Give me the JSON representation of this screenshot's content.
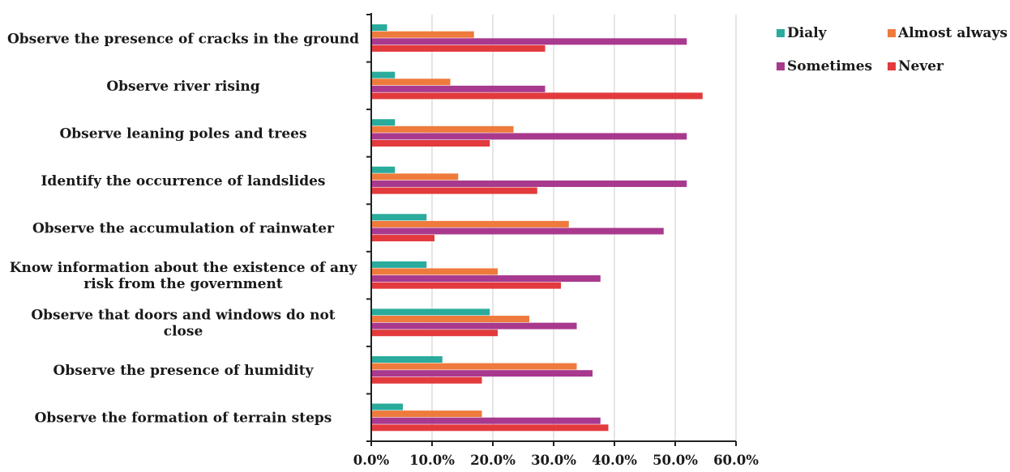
{
  "chart_data": {
    "type": "bar",
    "orientation": "horizontal",
    "categories": [
      "Observe the presence of cracks in the ground",
      "Observe river rising",
      "Observe leaning poles and trees",
      "Identify the occurrence of landslides",
      "Observe the accumulation of rainwater",
      "Know information about the existence of any risk from the government",
      "Observe that doors and windows do not close",
      "Observe the presence of humidity",
      "Observe the formation of terrain steps"
    ],
    "category_lines": [
      [
        "Observe the presence of cracks in the ground"
      ],
      [
        "Observe river rising"
      ],
      [
        "Observe leaning poles and trees"
      ],
      [
        "Identify the occurrence of landslides"
      ],
      [
        "Observe the accumulation of rainwater"
      ],
      [
        "Know information about the existence of any",
        "risk from the government"
      ],
      [
        "Observe that doors and windows do not",
        "close"
      ],
      [
        "Observe the presence of humidity"
      ],
      [
        "Observe the formation of terrain steps"
      ]
    ],
    "series": [
      {
        "name": "Dialy",
        "color": "#2aab9c",
        "values": [
          2.6,
          3.9,
          3.9,
          3.9,
          9.1,
          9.1,
          19.5,
          11.7,
          5.2
        ]
      },
      {
        "name": "Almost always",
        "color": "#ee7a3c",
        "values": [
          16.9,
          13.0,
          23.4,
          14.3,
          32.5,
          20.8,
          26.0,
          33.8,
          18.2
        ]
      },
      {
        "name": "Sometimes",
        "color": "#a8398e",
        "values": [
          51.9,
          28.6,
          51.9,
          51.9,
          48.1,
          37.7,
          33.8,
          36.4,
          37.7
        ]
      },
      {
        "name": "Never",
        "color": "#e23a3d",
        "values": [
          28.6,
          54.5,
          19.5,
          27.3,
          10.4,
          31.2,
          20.8,
          18.2,
          39.0
        ]
      }
    ],
    "x_ticks": [
      "0.0%",
      "10.0%",
      "20.0%",
      "30.0%",
      "40.0%",
      "50.0%",
      "60.0%"
    ],
    "xlim": [
      0,
      60
    ],
    "grid": true,
    "legend_position": "top-right",
    "title": "",
    "xlabel": "",
    "ylabel": ""
  }
}
